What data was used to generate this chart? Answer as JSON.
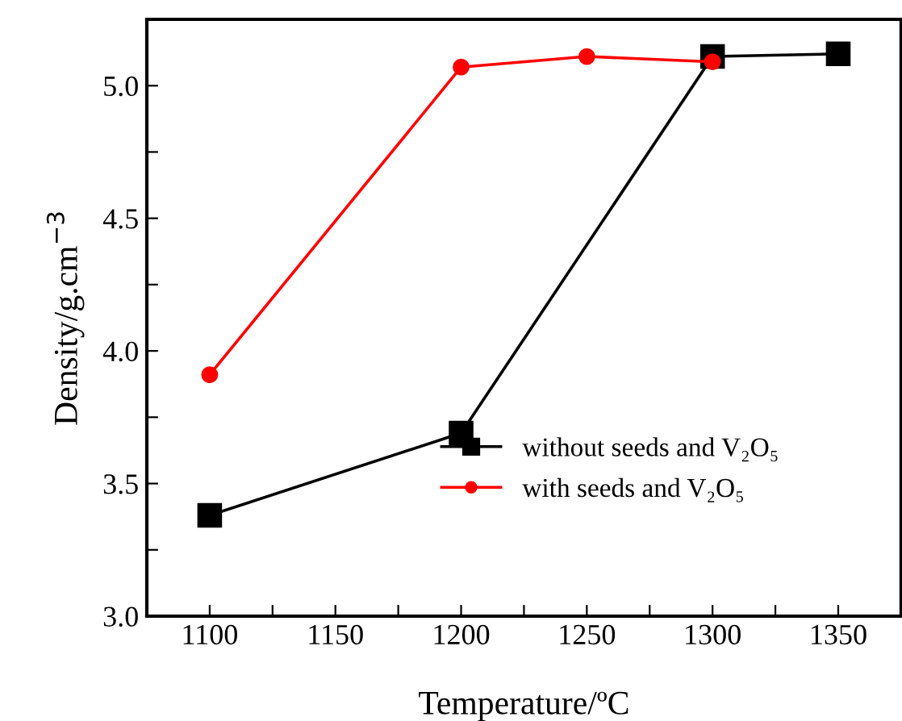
{
  "chart_data": {
    "type": "line",
    "xlabel": "Temperature/ºC",
    "ylabel": "Density/g.cm$^{−3}$",
    "xlim": [
      1075,
      1375
    ],
    "ylim": [
      3.0,
      5.25
    ],
    "xticks": [
      1100,
      {
        "value": 1125,
        "label": null
      },
      1150,
      {
        "value": 1175,
        "label": null
      },
      1200,
      {
        "value": 1225,
        "label": null
      },
      1250,
      {
        "value": 1275,
        "label": null
      },
      1300,
      {
        "value": 1325,
        "label": null
      },
      1350
    ],
    "yticks": [
      {
        "value": 3,
        "label": "3.0"
      },
      {
        "value": 3.25,
        "label": null
      },
      3.5,
      {
        "value": 3.75,
        "label": null
      },
      {
        "value": 4,
        "label": "4.0"
      },
      {
        "value": 4.25,
        "label": null
      },
      4.5,
      {
        "value": 4.75,
        "label": null
      },
      {
        "value": 5,
        "label": "5.0"
      }
    ],
    "legend": "bottom right",
    "grid": false,
    "series": [
      {
        "name": "without seeds and V₂O₅",
        "color": "#000000",
        "marker": "square",
        "x": [
          1100,
          1200,
          1300,
          1350
        ],
        "values": [
          3.38,
          3.69,
          5.11,
          5.12
        ]
      },
      {
        "name": "with seeds and V₂O₅",
        "color": "#ff0000",
        "marker": "circle",
        "x": [
          1100,
          1200,
          1250,
          1300
        ],
        "values": [
          3.91,
          5.07,
          5.11,
          5.09
        ]
      }
    ]
  }
}
